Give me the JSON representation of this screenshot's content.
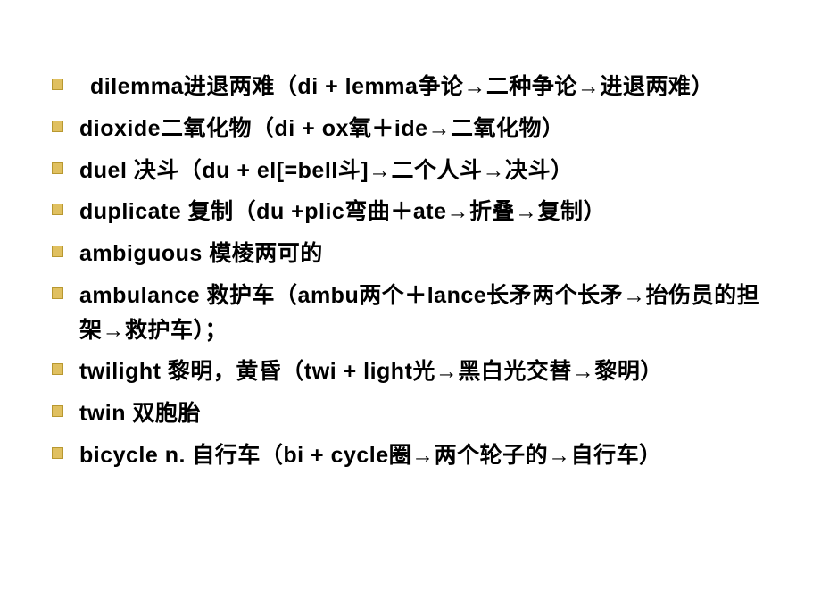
{
  "slide": {
    "background_color": "#ffffff",
    "bullet_color": "#e0c060",
    "bullet_border": "#b89830",
    "text_color": "#000000",
    "font_size": 25,
    "font_weight": "bold",
    "items": [
      {
        "text": " dilemma进退两难（di + lemma争论→二种争论→进退两难）",
        "indent": true
      },
      {
        "text": "dioxide二氧化物（di + ox氧＋ide→二氧化物）",
        "indent": false
      },
      {
        "text": "duel   决斗（du + el[=bell斗]→二个人斗→决斗）",
        "indent": false
      },
      {
        "text": "duplicate  复制（du +plic弯曲＋ate→折叠→复制）",
        "indent": false
      },
      {
        "text": "ambiguous 模棱两可的",
        "indent": false
      },
      {
        "text": "ambulance 救护车（ambu两个＋lance长矛两个长矛→抬伤员的担架→救护车）；",
        "indent": false
      },
      {
        "text": "twilight 黎明，黄昏（twi + light光→黑白光交替→黎明）",
        "indent": false
      },
      {
        "text": "twin 双胞胎",
        "indent": false
      },
      {
        "text": "bicycle  n. 自行车（bi + cycle圈→两个轮子的→自行车）",
        "indent": false
      }
    ]
  }
}
